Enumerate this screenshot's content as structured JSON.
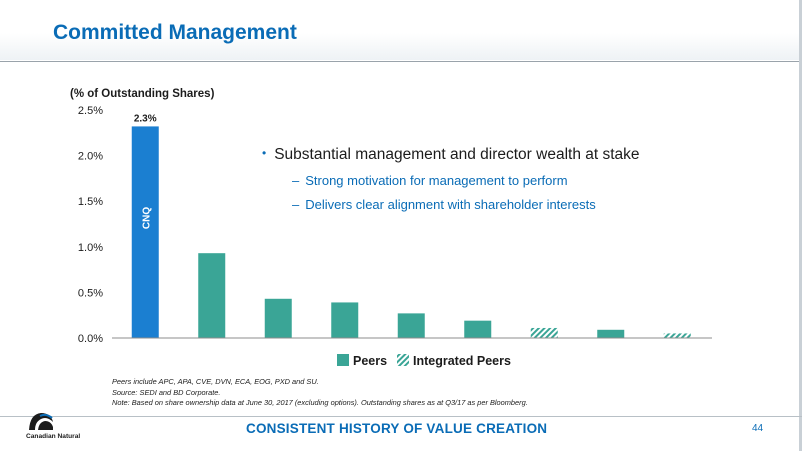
{
  "slide": {
    "title": "Committed Management",
    "tagline": "CONSISTENT HISTORY OF VALUE CREATION",
    "page_number": "44",
    "logo_text": "Canadian Natural"
  },
  "bullets": {
    "main": "Substantial management and director wealth at stake",
    "sub": [
      "Strong motivation for management to perform",
      "Delivers clear alignment with shareholder interests"
    ]
  },
  "notes": [
    "Peers include APC, APA, CVE, DVN, ECA, EOG, PXD and SU.",
    "Source: SEDI and BD Corporate.",
    "Note: Based on share ownership data at June 30, 2017 (excluding options). Outstanding shares as at Q3/17 as per Bloomberg."
  ],
  "colors": {
    "brand_blue": "#0a6cb6",
    "cnq_bar": "#1b7fd1",
    "peer_bar": "#3aa596"
  },
  "chart_data": {
    "type": "bar",
    "ylabel": "(% of Outstanding Shares)",
    "ylim": [
      0,
      2.5
    ],
    "yticks": [
      {
        "value": 0,
        "label": "0.0%"
      },
      {
        "value": 0.5,
        "label": "0.5%"
      },
      {
        "value": 1.0,
        "label": "1.0%"
      },
      {
        "value": 1.5,
        "label": "1.5%"
      },
      {
        "value": 2.0,
        "label": "2.0%"
      },
      {
        "value": 2.5,
        "label": "2.5%"
      }
    ],
    "bars": [
      {
        "value": 2.32,
        "group": "CNQ",
        "label": "CNQ",
        "data_label": "2.3%"
      },
      {
        "value": 0.93,
        "group": "Peers"
      },
      {
        "value": 0.43,
        "group": "Peers"
      },
      {
        "value": 0.39,
        "group": "Peers"
      },
      {
        "value": 0.27,
        "group": "Peers"
      },
      {
        "value": 0.19,
        "group": "Peers"
      },
      {
        "value": 0.11,
        "group": "Integrated Peers"
      },
      {
        "value": 0.09,
        "group": "Peers"
      },
      {
        "value": 0.05,
        "group": "Integrated Peers"
      }
    ],
    "legend": {
      "position": "bottom",
      "entries": [
        {
          "name": "Peers",
          "pattern": "solid"
        },
        {
          "name": "Integrated Peers",
          "pattern": "hatched"
        }
      ]
    },
    "grid": false
  }
}
